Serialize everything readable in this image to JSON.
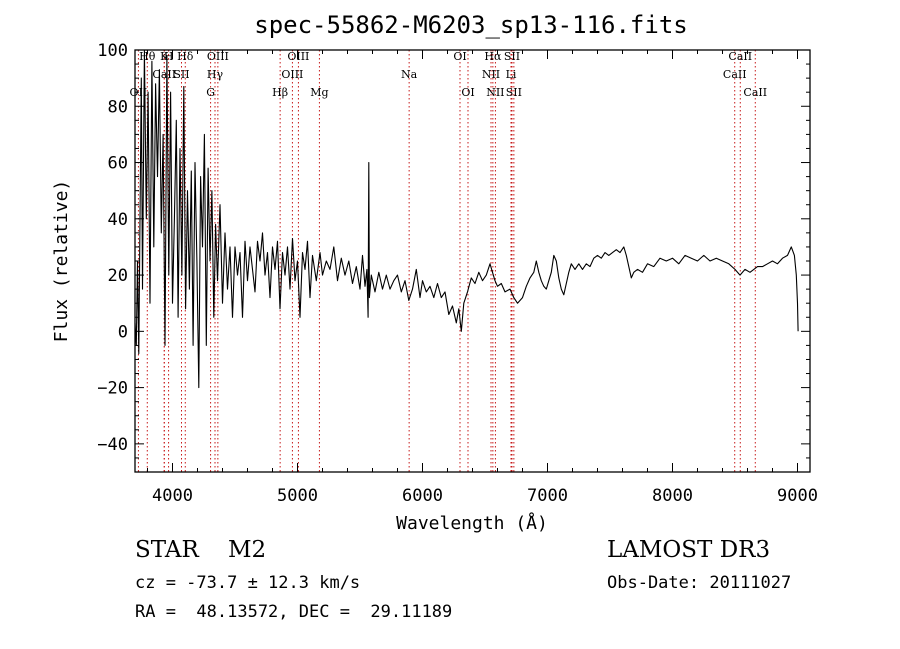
{
  "chart_data": {
    "type": "line",
    "title": "spec-55862-M6203_sp13-116.fits",
    "xlabel": "Wavelength (Å)",
    "ylabel": "Flux (relative)",
    "xlim": [
      3700,
      9100
    ],
    "ylim": [
      -50,
      100
    ],
    "xticks": [
      4000,
      5000,
      6000,
      7000,
      8000,
      9000
    ],
    "yticks": [
      -40,
      -20,
      0,
      20,
      40,
      60,
      80,
      100
    ],
    "series": [
      {
        "name": "spectrum",
        "color": "#000000",
        "points": [
          [
            3700,
            3
          ],
          [
            3710,
            -5
          ],
          [
            3720,
            25
          ],
          [
            3730,
            -8
          ],
          [
            3740,
            40
          ],
          [
            3750,
            90
          ],
          [
            3760,
            15
          ],
          [
            3775,
            100
          ],
          [
            3790,
            40
          ],
          [
            3805,
            85
          ],
          [
            3820,
            10
          ],
          [
            3835,
            96
          ],
          [
            3850,
            30
          ],
          [
            3865,
            88
          ],
          [
            3880,
            55
          ],
          [
            3895,
            93
          ],
          [
            3910,
            35
          ],
          [
            3925,
            70
          ],
          [
            3940,
            -5
          ],
          [
            3955,
            98
          ],
          [
            3970,
            20
          ],
          [
            3985,
            85
          ],
          [
            4000,
            10
          ],
          [
            4015,
            40
          ],
          [
            4030,
            75
          ],
          [
            4045,
            5
          ],
          [
            4060,
            65
          ],
          [
            4075,
            20
          ],
          [
            4090,
            87
          ],
          [
            4105,
            8
          ],
          [
            4120,
            50
          ],
          [
            4135,
            15
          ],
          [
            4150,
            57
          ],
          [
            4165,
            -5
          ],
          [
            4180,
            60
          ],
          [
            4195,
            25
          ],
          [
            4210,
            -20
          ],
          [
            4225,
            55
          ],
          [
            4240,
            30
          ],
          [
            4255,
            70
          ],
          [
            4270,
            -5
          ],
          [
            4285,
            58
          ],
          [
            4300,
            25
          ],
          [
            4315,
            50
          ],
          [
            4330,
            5
          ],
          [
            4345,
            38
          ],
          [
            4360,
            18
          ],
          [
            4380,
            45
          ],
          [
            4400,
            10
          ],
          [
            4420,
            35
          ],
          [
            4440,
            15
          ],
          [
            4460,
            30
          ],
          [
            4480,
            5
          ],
          [
            4500,
            30
          ],
          [
            4520,
            20
          ],
          [
            4540,
            28
          ],
          [
            4560,
            5
          ],
          [
            4580,
            32
          ],
          [
            4600,
            18
          ],
          [
            4620,
            30
          ],
          [
            4640,
            22
          ],
          [
            4660,
            14
          ],
          [
            4680,
            32
          ],
          [
            4700,
            25
          ],
          [
            4720,
            35
          ],
          [
            4740,
            20
          ],
          [
            4760,
            28
          ],
          [
            4780,
            12
          ],
          [
            4800,
            30
          ],
          [
            4820,
            22
          ],
          [
            4840,
            32
          ],
          [
            4860,
            8
          ],
          [
            4880,
            28
          ],
          [
            4900,
            20
          ],
          [
            4920,
            30
          ],
          [
            4940,
            15
          ],
          [
            4960,
            33
          ],
          [
            4980,
            18
          ],
          [
            5000,
            25
          ],
          [
            5020,
            5
          ],
          [
            5040,
            28
          ],
          [
            5060,
            22
          ],
          [
            5080,
            32
          ],
          [
            5100,
            12
          ],
          [
            5120,
            27
          ],
          [
            5150,
            18
          ],
          [
            5180,
            28
          ],
          [
            5200,
            20
          ],
          [
            5230,
            25
          ],
          [
            5260,
            22
          ],
          [
            5290,
            30
          ],
          [
            5320,
            18
          ],
          [
            5350,
            26
          ],
          [
            5380,
            20
          ],
          [
            5410,
            25
          ],
          [
            5440,
            17
          ],
          [
            5470,
            23
          ],
          [
            5500,
            15
          ],
          [
            5520,
            27
          ],
          [
            5540,
            16
          ],
          [
            5555,
            22
          ],
          [
            5565,
            5
          ],
          [
            5570,
            60
          ],
          [
            5575,
            12
          ],
          [
            5590,
            20
          ],
          [
            5620,
            14
          ],
          [
            5650,
            21
          ],
          [
            5680,
            15
          ],
          [
            5710,
            20
          ],
          [
            5740,
            15
          ],
          [
            5770,
            18
          ],
          [
            5800,
            20
          ],
          [
            5830,
            14
          ],
          [
            5860,
            18
          ],
          [
            5890,
            11
          ],
          [
            5920,
            15
          ],
          [
            5950,
            22
          ],
          [
            5980,
            12
          ],
          [
            6000,
            18
          ],
          [
            6030,
            14
          ],
          [
            6060,
            16
          ],
          [
            6090,
            12
          ],
          [
            6120,
            17
          ],
          [
            6150,
            12
          ],
          [
            6180,
            14
          ],
          [
            6210,
            6
          ],
          [
            6240,
            9
          ],
          [
            6270,
            3
          ],
          [
            6290,
            8
          ],
          [
            6310,
            0
          ],
          [
            6330,
            10
          ],
          [
            6360,
            14
          ],
          [
            6390,
            19
          ],
          [
            6420,
            17
          ],
          [
            6450,
            21
          ],
          [
            6480,
            18
          ],
          [
            6510,
            20
          ],
          [
            6540,
            24
          ],
          [
            6560,
            21
          ],
          [
            6580,
            18
          ],
          [
            6600,
            16
          ],
          [
            6630,
            17
          ],
          [
            6660,
            14
          ],
          [
            6700,
            15
          ],
          [
            6730,
            12
          ],
          [
            6760,
            10
          ],
          [
            6800,
            12
          ],
          [
            6830,
            16
          ],
          [
            6860,
            19
          ],
          [
            6890,
            21
          ],
          [
            6910,
            25
          ],
          [
            6930,
            21
          ],
          [
            6950,
            18
          ],
          [
            6970,
            16
          ],
          [
            6990,
            15
          ],
          [
            7010,
            18
          ],
          [
            7030,
            21
          ],
          [
            7050,
            27
          ],
          [
            7070,
            25
          ],
          [
            7090,
            19
          ],
          [
            7110,
            15
          ],
          [
            7130,
            13
          ],
          [
            7150,
            17
          ],
          [
            7170,
            21
          ],
          [
            7190,
            24
          ],
          [
            7220,
            22
          ],
          [
            7250,
            24
          ],
          [
            7280,
            22
          ],
          [
            7310,
            24
          ],
          [
            7340,
            23
          ],
          [
            7370,
            26
          ],
          [
            7400,
            27
          ],
          [
            7430,
            26
          ],
          [
            7460,
            28
          ],
          [
            7490,
            27
          ],
          [
            7520,
            28
          ],
          [
            7550,
            29
          ],
          [
            7580,
            28
          ],
          [
            7610,
            30
          ],
          [
            7630,
            27
          ],
          [
            7650,
            23
          ],
          [
            7670,
            19
          ],
          [
            7690,
            21
          ],
          [
            7720,
            22
          ],
          [
            7760,
            21
          ],
          [
            7800,
            24
          ],
          [
            7850,
            23
          ],
          [
            7900,
            26
          ],
          [
            7950,
            25
          ],
          [
            8000,
            26
          ],
          [
            8050,
            24
          ],
          [
            8100,
            27
          ],
          [
            8150,
            26
          ],
          [
            8200,
            25
          ],
          [
            8250,
            27
          ],
          [
            8300,
            25
          ],
          [
            8350,
            26
          ],
          [
            8400,
            25
          ],
          [
            8450,
            24
          ],
          [
            8500,
            22
          ],
          [
            8540,
            20
          ],
          [
            8580,
            22
          ],
          [
            8620,
            21
          ],
          [
            8650,
            22
          ],
          [
            8680,
            23
          ],
          [
            8720,
            23
          ],
          [
            8760,
            24
          ],
          [
            8800,
            25
          ],
          [
            8840,
            24
          ],
          [
            8880,
            26
          ],
          [
            8920,
            27
          ],
          [
            8950,
            30
          ],
          [
            8975,
            27
          ],
          [
            8990,
            20
          ],
          [
            9000,
            10
          ],
          [
            9005,
            0
          ]
        ]
      }
    ],
    "lines": [
      {
        "label": "OII",
        "x": 3727,
        "row": 3
      },
      {
        "label": "Hθ",
        "x": 3798,
        "row": 1
      },
      {
        "label": "CaII",
        "x": 3934,
        "row": 2
      },
      {
        "label": "K",
        "x": 3934,
        "row": 1
      },
      {
        "label": "H",
        "x": 3969,
        "row": 1
      },
      {
        "label": "SII",
        "x": 4072,
        "row": 2
      },
      {
        "label": "Hδ",
        "x": 4102,
        "row": 1
      },
      {
        "label": "OIII",
        "x": 4363,
        "row": 1
      },
      {
        "label": "Hγ",
        "x": 4340,
        "row": 2
      },
      {
        "label": "G",
        "x": 4305,
        "row": 3
      },
      {
        "label": "Hβ",
        "x": 4861,
        "row": 3
      },
      {
        "label": "OIII",
        "x": 4959,
        "row": 2
      },
      {
        "label": "OIII",
        "x": 5007,
        "row": 1
      },
      {
        "label": "Mg",
        "x": 5175,
        "row": 3
      },
      {
        "label": "Na",
        "x": 5893,
        "row": 2
      },
      {
        "label": "OI",
        "x": 6300,
        "row": 1
      },
      {
        "label": "OI",
        "x": 6364,
        "row": 3
      },
      {
        "label": "Hα",
        "x": 6563,
        "row": 1
      },
      {
        "label": "NII",
        "x": 6548,
        "row": 2
      },
      {
        "label": "NII",
        "x": 6583,
        "row": 3
      },
      {
        "label": "SII",
        "x": 6716,
        "row": 1
      },
      {
        "label": "Li",
        "x": 6708,
        "row": 2
      },
      {
        "label": "SII",
        "x": 6731,
        "row": 3
      },
      {
        "label": "CaII",
        "x": 8498,
        "row": 2
      },
      {
        "label": "CaII",
        "x": 8542,
        "row": 1
      },
      {
        "label": "CaII",
        "x": 8662,
        "row": 3
      }
    ]
  },
  "info": {
    "object_class": "STAR    M2",
    "survey": "LAMOST DR3",
    "redshift": "cz = -73.7 ± 12.3 km/s",
    "obs_date": "Obs-Date: 20111027",
    "coords": "RA =  48.13572, DEC =  29.11189"
  },
  "colors": {
    "spectrum": "#000000",
    "line_markers": "#c00000",
    "axes": "#000000",
    "background": "#ffffff"
  }
}
